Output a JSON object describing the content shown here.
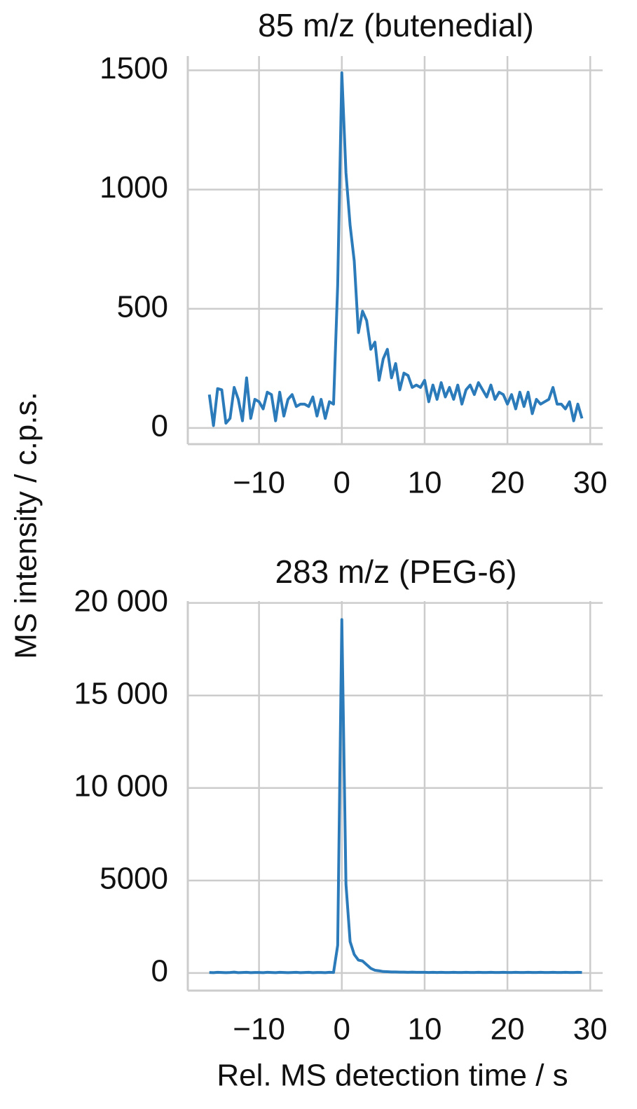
{
  "chart_data": [
    {
      "type": "line",
      "title": "85 m/z (butenedial)",
      "ylabel": "MS intensity / c.p.s.",
      "color": "#2b7bba",
      "grid": true,
      "x": [
        -16,
        -15.5,
        -15,
        -14.5,
        -14,
        -13.5,
        -13,
        -12.5,
        -12,
        -11.5,
        -11,
        -10.5,
        -10,
        -9.5,
        -9,
        -8.5,
        -8,
        -7.5,
        -7,
        -6.5,
        -6,
        -5.5,
        -5,
        -4.5,
        -4,
        -3.5,
        -3,
        -2.5,
        -2,
        -1.5,
        -1,
        -0.5,
        0,
        0.5,
        1,
        1.5,
        2,
        2.5,
        3,
        3.5,
        4,
        4.5,
        5,
        5.5,
        6,
        6.5,
        7,
        7.5,
        8,
        8.5,
        9,
        9.5,
        10,
        10.5,
        11,
        11.5,
        12,
        12.5,
        13,
        13.5,
        14,
        14.5,
        15,
        15.5,
        16,
        16.5,
        17,
        17.5,
        18,
        18.5,
        19,
        19.5,
        20,
        20.5,
        21,
        21.5,
        22,
        22.5,
        23,
        23.5,
        24,
        24.5,
        25,
        25.5,
        26,
        26.5,
        27,
        27.5,
        28,
        28.5,
        29
      ],
      "values": [
        140,
        10,
        165,
        160,
        20,
        40,
        170,
        120,
        30,
        210,
        40,
        120,
        110,
        80,
        150,
        140,
        30,
        150,
        50,
        120,
        140,
        90,
        100,
        100,
        90,
        130,
        50,
        120,
        40,
        110,
        100,
        600,
        1490,
        1070,
        850,
        700,
        400,
        490,
        450,
        330,
        360,
        200,
        290,
        330,
        210,
        270,
        160,
        230,
        220,
        170,
        180,
        170,
        200,
        110,
        180,
        120,
        190,
        130,
        170,
        120,
        180,
        100,
        160,
        180,
        140,
        190,
        160,
        130,
        180,
        120,
        150,
        140,
        100,
        140,
        80,
        150,
        90,
        150,
        60,
        120,
        100,
        110,
        120,
        170,
        100,
        100,
        80,
        110,
        30,
        100,
        40
      ],
      "xlim": [
        -18.6,
        31.5
      ],
      "ylim": [
        -68,
        1560
      ],
      "xticks": [
        {
          "value": -10,
          "label": "−10"
        },
        0,
        10,
        20,
        30
      ],
      "yticks": [
        0,
        500,
        1000,
        1500
      ]
    },
    {
      "type": "line",
      "title": "283 m/z (PEG-6)",
      "xlabel": "Rel. MS detection time / s",
      "color": "#2b7bba",
      "grid": true,
      "x": [
        -16,
        -15.5,
        -15,
        -14.5,
        -14,
        -13.5,
        -13,
        -12.5,
        -12,
        -11.5,
        -11,
        -10.5,
        -10,
        -9.5,
        -9,
        -8.5,
        -8,
        -7.5,
        -7,
        -6.5,
        -6,
        -5.5,
        -5,
        -4.5,
        -4,
        -3.5,
        -3,
        -2.5,
        -2,
        -1.5,
        -1,
        -0.5,
        0,
        0.5,
        1,
        1.5,
        2,
        2.5,
        3,
        3.5,
        4,
        4.5,
        5,
        5.5,
        6,
        6.5,
        7,
        7.5,
        8,
        8.5,
        9,
        9.5,
        10,
        10.5,
        11,
        11.5,
        12,
        12.5,
        13,
        13.5,
        14,
        14.5,
        15,
        15.5,
        16,
        16.5,
        17,
        17.5,
        18,
        18.5,
        19,
        19.5,
        20,
        20.5,
        21,
        21.5,
        22,
        22.5,
        23,
        23.5,
        24,
        24.5,
        25,
        25.5,
        26,
        26.5,
        27,
        27.5,
        28,
        28.5,
        29
      ],
      "values": [
        30,
        20,
        40,
        30,
        20,
        30,
        50,
        20,
        30,
        40,
        20,
        30,
        30,
        20,
        40,
        30,
        20,
        40,
        30,
        20,
        30,
        40,
        20,
        30,
        40,
        20,
        30,
        30,
        20,
        40,
        30,
        1500,
        19100,
        4800,
        1700,
        1000,
        700,
        650,
        450,
        250,
        150,
        120,
        80,
        70,
        60,
        60,
        50,
        50,
        40,
        50,
        40,
        40,
        40,
        30,
        40,
        30,
        40,
        30,
        30,
        40,
        30,
        30,
        40,
        30,
        30,
        40,
        30,
        30,
        40,
        30,
        30,
        40,
        30,
        30,
        40,
        30,
        30,
        40,
        30,
        30,
        40,
        30,
        30,
        40,
        30,
        30,
        40,
        30,
        30,
        40,
        30
      ],
      "xlim": [
        -18.6,
        31.5
      ],
      "ylim": [
        -950,
        20100
      ],
      "xticks": [
        {
          "value": -10,
          "label": "−10"
        },
        0,
        10,
        20,
        30
      ],
      "yticks": [
        0,
        5000,
        {
          "value": 10000,
          "label": "10 000"
        },
        {
          "value": 15000,
          "label": "15 000"
        },
        {
          "value": 20000,
          "label": "20 000"
        }
      ]
    }
  ]
}
